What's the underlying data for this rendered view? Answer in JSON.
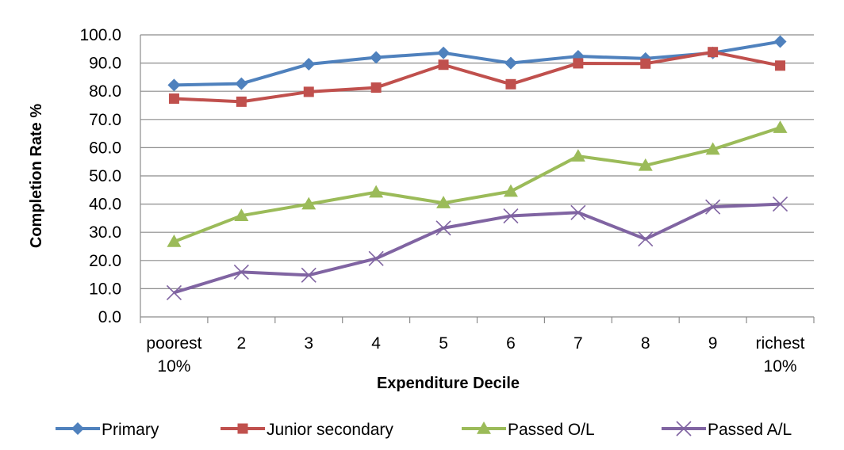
{
  "chart_data": {
    "type": "line",
    "xlabel": "Expenditure Decile",
    "ylabel": "Completion Rate %",
    "categories": [
      [
        "poorest",
        "10%"
      ],
      [
        "2"
      ],
      [
        "3"
      ],
      [
        "4"
      ],
      [
        "5"
      ],
      [
        "6"
      ],
      [
        "7"
      ],
      [
        "8"
      ],
      [
        "9"
      ],
      [
        "richest",
        "10%"
      ]
    ],
    "ylim": [
      0,
      100
    ],
    "yticks": [
      "0.0",
      "10.0",
      "20.0",
      "30.0",
      "40.0",
      "50.0",
      "60.0",
      "70.0",
      "80.0",
      "90.0",
      "100.0"
    ],
    "grid": true,
    "legend_position": "bottom",
    "series": [
      {
        "name": "Primary",
        "color": "#4f81bd",
        "marker": "diamond",
        "values": [
          82.2,
          82.7,
          89.6,
          92.0,
          93.6,
          90.0,
          92.4,
          91.6,
          93.6,
          97.6
        ]
      },
      {
        "name": "Junior secondary",
        "color": "#c0504d",
        "marker": "square",
        "values": [
          77.4,
          76.3,
          79.8,
          81.3,
          89.4,
          82.5,
          89.9,
          89.8,
          93.9,
          89.1
        ]
      },
      {
        "name": "Passed O/L",
        "color": "#9bbb59",
        "marker": "triangle",
        "values": [
          26.7,
          35.9,
          40.0,
          44.2,
          40.4,
          44.5,
          57.0,
          53.7,
          59.4,
          67.1
        ]
      },
      {
        "name": "Passed A/L",
        "color": "#8064a2",
        "marker": "x",
        "values": [
          8.6,
          15.9,
          14.8,
          20.7,
          31.5,
          35.8,
          37.0,
          27.6,
          39.0,
          40.0
        ]
      }
    ]
  }
}
